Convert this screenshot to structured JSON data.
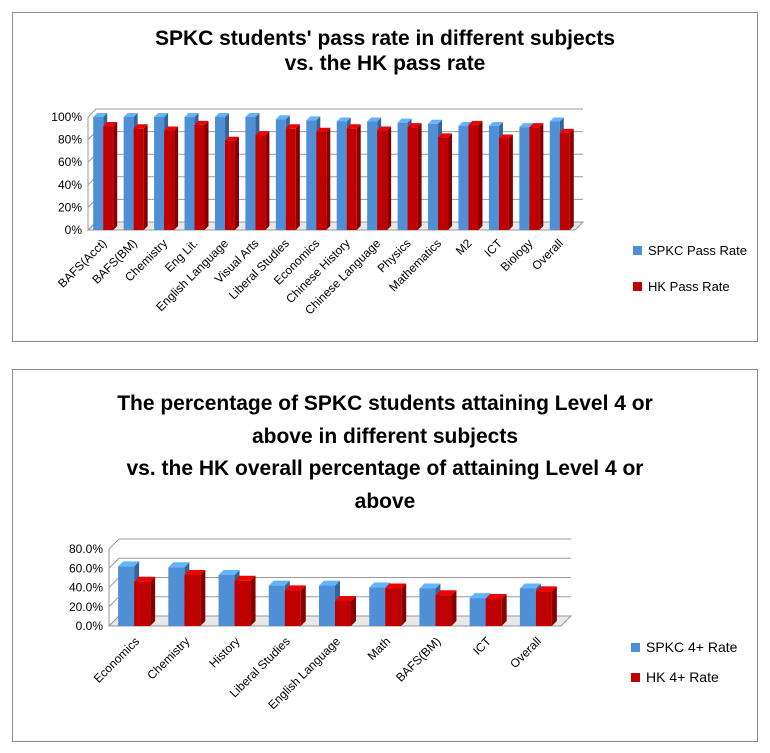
{
  "chart_data": [
    {
      "type": "bar",
      "title": [
        "SPKC students' pass rate in different subjects",
        "vs. the HK pass rate"
      ],
      "categories": [
        "BAFS(Acct)",
        "BAFS(BM)",
        "Chemistry",
        "Eng Lit.",
        "English Language",
        "Visual Arts",
        "Liberal Studies",
        "Economics",
        "Chinese History",
        "Chinese Language",
        "Physics",
        "Mathematics",
        "M2",
        "ICT",
        "Biology",
        "Overall"
      ],
      "series": [
        {
          "name": "SPKC Pass Rate",
          "color": "#4f8fd6",
          "values": [
            100,
            100,
            100,
            100,
            100,
            100,
            98,
            97,
            96,
            96,
            95,
            94,
            92,
            92,
            91,
            96
          ]
        },
        {
          "name": "HK Pass Rate",
          "color": "#c00000",
          "values": [
            92,
            90,
            88,
            93,
            79,
            84,
            90,
            87,
            90,
            88,
            91,
            82,
            93,
            81,
            91,
            86
          ]
        }
      ],
      "y_ticks": [
        "0%",
        "20%",
        "40%",
        "60%",
        "80%",
        "100%"
      ],
      "ylim": [
        0,
        100
      ],
      "grid": true,
      "legend": "right"
    },
    {
      "type": "bar",
      "title": [
        "The percentage of SPKC students attaining Level 4 or",
        "above in different subjects",
        "vs. the HK overall percentage of attaining Level 4 or",
        "above"
      ],
      "categories": [
        "Economics",
        "Chemistry",
        "History",
        "Liberal Studies",
        "English Language",
        "Math",
        "BAFS(BM)",
        "ICT",
        "Overall"
      ],
      "series": [
        {
          "name": "SPKC 4+ Rate",
          "color": "#4f8fd6",
          "values": [
            62,
            61,
            53,
            42,
            42,
            40,
            39,
            29,
            39
          ]
        },
        {
          "name": "HK 4+ Rate",
          "color": "#c00000",
          "values": [
            46,
            53,
            47,
            37,
            26,
            39,
            32,
            28,
            36
          ]
        }
      ],
      "y_ticks": [
        "0.0%",
        "20.0%",
        "40.0%",
        "60.0%",
        "80.0%"
      ],
      "ylim": [
        0,
        80
      ],
      "grid": true,
      "legend": "right"
    }
  ]
}
